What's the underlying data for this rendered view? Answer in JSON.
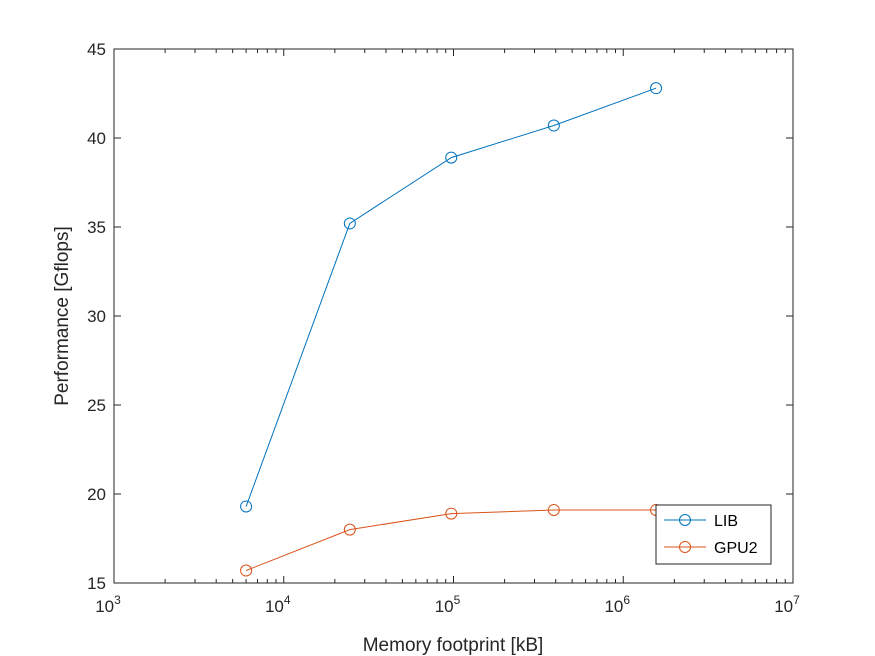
{
  "chart_data": {
    "type": "line",
    "xscale": "log",
    "xlabel": "Memory footprint [kB]",
    "ylabel": "Performance [Gflops]",
    "xlim": [
      1000,
      10000000
    ],
    "ylim": [
      15,
      45
    ],
    "xticks": [
      {
        "value": 1000,
        "base": "10",
        "exp": "3"
      },
      {
        "value": 10000,
        "base": "10",
        "exp": "4"
      },
      {
        "value": 100000,
        "base": "10",
        "exp": "5"
      },
      {
        "value": 1000000,
        "base": "10",
        "exp": "6"
      },
      {
        "value": 10000000,
        "base": "10",
        "exp": "7"
      }
    ],
    "yticks": [
      15,
      20,
      25,
      30,
      35,
      40,
      45
    ],
    "grid": false,
    "legend_position": "bottom-right",
    "series": [
      {
        "name": "LIB",
        "color": "#0072BD",
        "marker": "circle",
        "x": [
          6000,
          24500,
          97000,
          390000,
          1560000
        ],
        "y": [
          19.3,
          35.2,
          38.9,
          40.7,
          42.8
        ]
      },
      {
        "name": "GPU2",
        "color": "#D95319",
        "marker": "circle",
        "x": [
          6000,
          24500,
          97000,
          390000,
          1560000
        ],
        "y": [
          15.7,
          18.0,
          18.9,
          19.1,
          19.1
        ]
      }
    ]
  }
}
